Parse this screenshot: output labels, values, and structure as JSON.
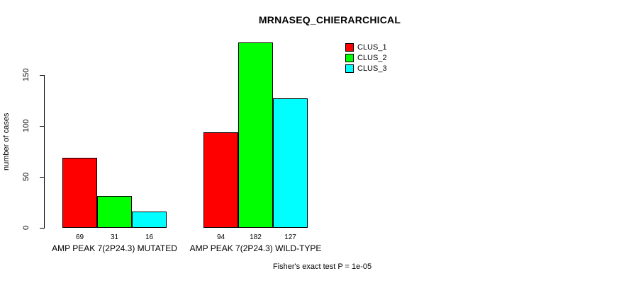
{
  "title": "MRNASEQ_CHIERARCHICAL",
  "footer": "Fisher's exact test P = 1e-05",
  "chart_data": {
    "type": "bar",
    "title": "MRNASEQ_CHIERARCHICAL",
    "categories": [
      "AMP PEAK 7(2P24.3) MUTATED",
      "AMP PEAK 7(2P24.3) WILD-TYPE"
    ],
    "series": [
      {
        "name": "CLUS_1",
        "color": "#ff0000",
        "values": [
          69,
          94
        ]
      },
      {
        "name": "CLUS_2",
        "color": "#00ff00",
        "values": [
          31,
          182
        ]
      },
      {
        "name": "CLUS_3",
        "color": "#00ffff",
        "values": [
          16,
          127
        ]
      }
    ],
    "value_labels": [
      [
        69,
        31,
        16
      ],
      [
        94,
        182,
        127
      ]
    ],
    "xlabel": "",
    "ylabel": "number of cases",
    "yticks": [
      0,
      50,
      100,
      150
    ],
    "ylim": [
      0,
      185
    ],
    "grid": false,
    "legend_position": "top-right",
    "annotation": "Fisher's exact test P = 1e-05"
  }
}
